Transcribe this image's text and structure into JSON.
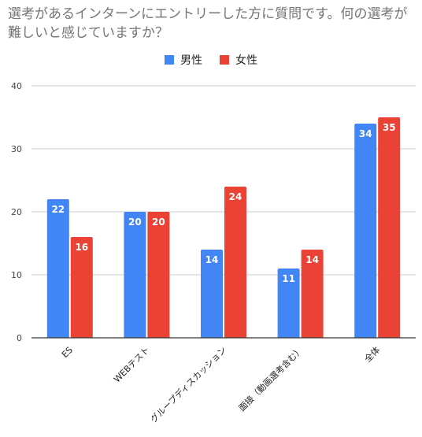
{
  "title": "選考があるインターンにエントリーした方に質問です。何の選考が難しいと感じていますか？",
  "colors": {
    "male": "#4285F4",
    "female": "#EA4335",
    "grid": "#cccccc",
    "axis": "#333333"
  },
  "chart_data": {
    "type": "bar",
    "title": "選考があるインターンにエントリーした方に質問です。何の選考が難しいと感じていますか？",
    "categories": [
      "ES",
      "WEBテスト",
      "グループディスカッション",
      "面接（動画選考含む）",
      "全体"
    ],
    "series": [
      {
        "name": "男性",
        "color": "#4285F4",
        "values": [
          22,
          20,
          14,
          11,
          34
        ]
      },
      {
        "name": "女性",
        "color": "#EA4335",
        "values": [
          16,
          20,
          24,
          14,
          35
        ]
      }
    ],
    "ylim": [
      0,
      40
    ],
    "yticks": [
      0,
      10,
      20,
      30,
      40
    ],
    "grid": true,
    "legend": "top",
    "data_labels": true
  }
}
